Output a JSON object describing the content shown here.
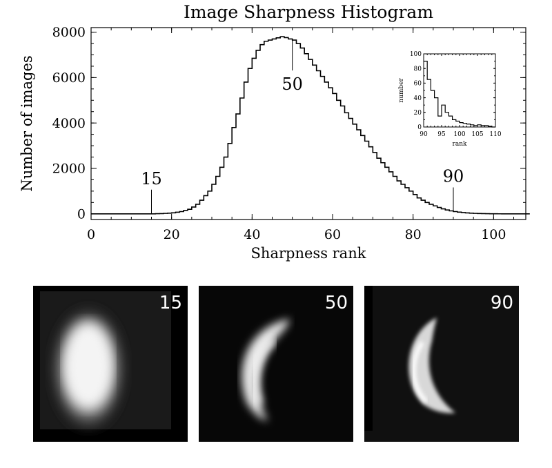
{
  "chart_data": [
    {
      "type": "histogram",
      "title": "Image Sharpness Histogram",
      "xlabel": "Sharpness rank",
      "ylabel": "Number of images",
      "xlim": [
        0,
        108
      ],
      "ylim": [
        -250,
        8200
      ],
      "xticks": [
        "0",
        "20",
        "40",
        "60",
        "80",
        "100"
      ],
      "yticks": [
        "0",
        "2000",
        "4000",
        "6000",
        "8000"
      ],
      "bin_width": 1,
      "bin_start": 0,
      "values": [
        0,
        0,
        0,
        0,
        0,
        0,
        0,
        0,
        0,
        0,
        0,
        0,
        0,
        0,
        0,
        0,
        5,
        10,
        20,
        30,
        45,
        70,
        100,
        150,
        200,
        300,
        420,
        600,
        800,
        1000,
        1300,
        1650,
        2050,
        2500,
        3100,
        3800,
        4400,
        5100,
        5800,
        6400,
        6850,
        7200,
        7450,
        7600,
        7650,
        7700,
        7750,
        7800,
        7760,
        7700,
        7650,
        7500,
        7300,
        7050,
        6800,
        6550,
        6300,
        6050,
        5800,
        5550,
        5300,
        5000,
        4750,
        4450,
        4200,
        3950,
        3700,
        3450,
        3200,
        2950,
        2700,
        2450,
        2250,
        2050,
        1850,
        1650,
        1450,
        1300,
        1150,
        1000,
        850,
        700,
        600,
        500,
        420,
        350,
        280,
        220,
        170,
        130,
        100,
        75,
        55,
        40,
        30,
        20,
        15,
        10,
        6,
        4,
        2,
        1,
        0,
        0,
        0,
        0,
        0,
        0,
        0
      ],
      "annotations": [
        {
          "label": "15",
          "x": 15
        },
        {
          "label": "50",
          "x": 50
        },
        {
          "label": "90",
          "x": 90
        }
      ]
    },
    {
      "type": "histogram",
      "title": "",
      "xlabel": "rank",
      "ylabel": "number",
      "xlim": [
        90,
        110
      ],
      "ylim": [
        0,
        100
      ],
      "xticks": [
        "90",
        "95",
        "100",
        "105",
        "110"
      ],
      "yticks": [
        "0",
        "20",
        "40",
        "60",
        "80",
        "100"
      ],
      "bin_width": 1,
      "bin_start": 90,
      "values": [
        90,
        65,
        50,
        40,
        15,
        30,
        20,
        15,
        10,
        8,
        6,
        5,
        4,
        3,
        2,
        3,
        2,
        2,
        1,
        0
      ]
    }
  ],
  "images": [
    {
      "label": "15"
    },
    {
      "label": "50"
    },
    {
      "label": "90"
    }
  ]
}
